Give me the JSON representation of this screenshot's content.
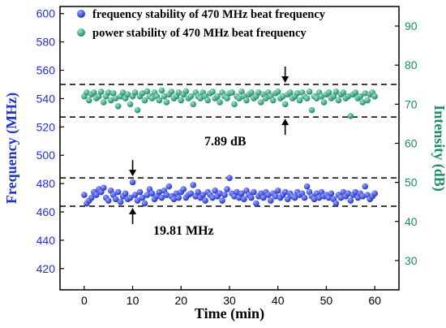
{
  "chart_data": {
    "type": "scatter",
    "xlabel": "Time (min)",
    "ylabel_left": "Frequency (MHz)",
    "ylabel_right": "Intensity (dB)",
    "xlim": [
      -5,
      65
    ],
    "ylim_left": [
      405,
      605
    ],
    "ylim_right": [
      22.5,
      95
    ],
    "x_ticks": [
      0,
      10,
      20,
      30,
      40,
      50,
      60
    ],
    "y_left_ticks": [
      420,
      440,
      460,
      480,
      500,
      520,
      540,
      560,
      580,
      600
    ],
    "y_right_ticks": [
      30,
      40,
      50,
      60,
      70,
      80,
      90
    ],
    "colors": {
      "frequency": "#2233c8",
      "power": "#1e8a6a",
      "left_axis": "#2233c8",
      "right_axis": "#1e8a6a"
    },
    "legend": {
      "placement": "top-left",
      "entries": [
        "frequency stability of 470 MHz beat frequency",
        "power stability of 470 MHz beat frequency"
      ]
    },
    "series": [
      {
        "name": "frequency stability of 470 MHz beat frequency",
        "axis": "left",
        "points": [
          [
            0,
            472
          ],
          [
            0.5,
            466
          ],
          [
            1,
            468
          ],
          [
            1.5,
            470
          ],
          [
            2,
            474
          ],
          [
            2.5,
            472
          ],
          [
            3,
            476
          ],
          [
            3.5,
            474
          ],
          [
            4,
            477
          ],
          [
            4.5,
            470
          ],
          [
            5,
            468
          ],
          [
            5.5,
            475
          ],
          [
            6,
            472
          ],
          [
            6.5,
            469
          ],
          [
            7,
            474
          ],
          [
            7.5,
            467
          ],
          [
            8,
            471
          ],
          [
            8.5,
            473
          ],
          [
            9,
            469
          ],
          [
            9.5,
            470
          ],
          [
            10,
            481
          ],
          [
            10.5,
            472
          ],
          [
            11,
            468
          ],
          [
            11.5,
            474
          ],
          [
            12,
            470
          ],
          [
            12.5,
            466
          ],
          [
            13,
            472
          ],
          [
            13.5,
            476
          ],
          [
            14,
            473
          ],
          [
            14.5,
            469
          ],
          [
            15,
            471
          ],
          [
            15.5,
            474
          ],
          [
            16,
            470
          ],
          [
            16.5,
            475
          ],
          [
            17,
            472
          ],
          [
            17.5,
            478
          ],
          [
            18,
            471
          ],
          [
            18.5,
            469
          ],
          [
            19,
            473
          ],
          [
            19.5,
            470
          ],
          [
            20,
            474
          ],
          [
            20.5,
            476
          ],
          [
            21,
            470
          ],
          [
            21.5,
            472
          ],
          [
            22,
            473
          ],
          [
            22.5,
            479
          ],
          [
            23,
            471
          ],
          [
            23.5,
            474
          ],
          [
            24,
            470
          ],
          [
            24.5,
            472
          ],
          [
            25,
            468
          ],
          [
            25.5,
            474
          ],
          [
            26,
            472
          ],
          [
            26.5,
            470
          ],
          [
            27,
            475
          ],
          [
            27.5,
            471
          ],
          [
            28,
            473
          ],
          [
            28.5,
            468
          ],
          [
            29,
            472
          ],
          [
            29.5,
            476
          ],
          [
            30,
            484
          ],
          [
            30.5,
            473
          ],
          [
            31,
            471
          ],
          [
            31.5,
            474
          ],
          [
            32,
            470
          ],
          [
            32.5,
            473
          ],
          [
            33,
            469
          ],
          [
            33.5,
            475
          ],
          [
            34,
            472
          ],
          [
            34.5,
            470
          ],
          [
            35,
            474
          ],
          [
            35.5,
            466
          ],
          [
            36,
            471
          ],
          [
            36.5,
            473
          ],
          [
            37,
            470
          ],
          [
            37.5,
            474
          ],
          [
            38,
            472
          ],
          [
            38.5,
            468
          ],
          [
            39,
            473
          ],
          [
            39.5,
            471
          ],
          [
            40,
            475
          ],
          [
            40.5,
            470
          ],
          [
            41,
            472
          ],
          [
            41.5,
            474
          ],
          [
            42,
            469
          ],
          [
            42.5,
            473
          ],
          [
            43,
            471
          ],
          [
            43.5,
            470
          ],
          [
            44,
            474
          ],
          [
            44.5,
            472
          ],
          [
            45,
            473
          ],
          [
            45.5,
            470
          ],
          [
            46,
            478
          ],
          [
            46.5,
            474
          ],
          [
            47,
            471
          ],
          [
            47.5,
            469
          ],
          [
            48,
            473
          ],
          [
            48.5,
            470
          ],
          [
            49,
            474
          ],
          [
            49.5,
            471
          ],
          [
            50,
            472
          ],
          [
            50.5,
            470
          ],
          [
            51,
            473
          ],
          [
            51.5,
            469
          ],
          [
            52,
            466
          ],
          [
            52.5,
            472
          ],
          [
            53,
            470
          ],
          [
            53.5,
            474
          ],
          [
            54,
            471
          ],
          [
            54.5,
            473
          ],
          [
            55,
            468
          ],
          [
            55.5,
            472
          ],
          [
            56,
            474
          ],
          [
            56.5,
            470
          ],
          [
            57,
            473
          ],
          [
            57.5,
            471
          ],
          [
            58,
            478
          ],
          [
            58.5,
            472
          ],
          [
            59,
            469
          ],
          [
            59.5,
            471
          ],
          [
            60,
            473
          ]
        ]
      },
      {
        "name": "power stability of 470 MHz beat frequency",
        "axis": "right",
        "points": [
          [
            0,
            72
          ],
          [
            0.5,
            73
          ],
          [
            1,
            71
          ],
          [
            1.5,
            72.5
          ],
          [
            2,
            73
          ],
          [
            2.5,
            71.5
          ],
          [
            3,
            72
          ],
          [
            3.5,
            73.2
          ],
          [
            4,
            70.5
          ],
          [
            4.5,
            72
          ],
          [
            5,
            73
          ],
          [
            5.5,
            71
          ],
          [
            6,
            72.8
          ],
          [
            6.5,
            71.5
          ],
          [
            7,
            69.5
          ],
          [
            7.5,
            72
          ],
          [
            8,
            73
          ],
          [
            8.5,
            71.5
          ],
          [
            9,
            72.5
          ],
          [
            9.5,
            70
          ],
          [
            10,
            72
          ],
          [
            10.5,
            73
          ],
          [
            11,
            68.5
          ],
          [
            11.5,
            72
          ],
          [
            12,
            72.8
          ],
          [
            12.5,
            71
          ],
          [
            13,
            73.3
          ],
          [
            13.5,
            72
          ],
          [
            14,
            71.5
          ],
          [
            14.5,
            73
          ],
          [
            15,
            72
          ],
          [
            15.5,
            71
          ],
          [
            16,
            73.5
          ],
          [
            16.5,
            72
          ],
          [
            17,
            70.5
          ],
          [
            17.5,
            72.5
          ],
          [
            18,
            73.2
          ],
          [
            18.5,
            71.5
          ],
          [
            19,
            72
          ],
          [
            19.5,
            73
          ],
          [
            20,
            71
          ],
          [
            20.5,
            72.5
          ],
          [
            21,
            73.3
          ],
          [
            21.5,
            71.5
          ],
          [
            22,
            72
          ],
          [
            22.5,
            70
          ],
          [
            23,
            73
          ],
          [
            23.5,
            72
          ],
          [
            24,
            71.5
          ],
          [
            24.5,
            73
          ],
          [
            25,
            72
          ],
          [
            25.5,
            71
          ],
          [
            26,
            72.8
          ],
          [
            26.5,
            73.2
          ],
          [
            27,
            71.5
          ],
          [
            27.5,
            72
          ],
          [
            28,
            70.5
          ],
          [
            28.5,
            73
          ],
          [
            29,
            72
          ],
          [
            29.5,
            71.5
          ],
          [
            30,
            72.8
          ],
          [
            30.5,
            73
          ],
          [
            31,
            70
          ],
          [
            31.5,
            72
          ],
          [
            32,
            71.5
          ],
          [
            32.5,
            73.2
          ],
          [
            33,
            72
          ],
          [
            33.5,
            71
          ],
          [
            34,
            72.5
          ],
          [
            34.5,
            73
          ],
          [
            35,
            71.5
          ],
          [
            35.5,
            72
          ],
          [
            36,
            73
          ],
          [
            36.5,
            70.5
          ],
          [
            37,
            72.5
          ],
          [
            37.5,
            71.5
          ],
          [
            38,
            73
          ],
          [
            38.5,
            72
          ],
          [
            39,
            71
          ],
          [
            39.5,
            72.8
          ],
          [
            40,
            73.2
          ],
          [
            40.5,
            71.5
          ],
          [
            41,
            72
          ],
          [
            41.5,
            70
          ],
          [
            42,
            72.5
          ],
          [
            42.5,
            73
          ],
          [
            43,
            71.5
          ],
          [
            43.5,
            72
          ],
          [
            44,
            72.8
          ],
          [
            44.5,
            71
          ],
          [
            45,
            73
          ],
          [
            45.5,
            72
          ],
          [
            46,
            71.5
          ],
          [
            46.5,
            73.2
          ],
          [
            47,
            68.5
          ],
          [
            47.5,
            72
          ],
          [
            48,
            71.5
          ],
          [
            48.5,
            73
          ],
          [
            49,
            72
          ],
          [
            49.5,
            70.5
          ],
          [
            50,
            72.5
          ],
          [
            50.5,
            73
          ],
          [
            51,
            71.5
          ],
          [
            51.5,
            72
          ],
          [
            52,
            73.2
          ],
          [
            52.5,
            71
          ],
          [
            53,
            72.5
          ],
          [
            53.5,
            73
          ],
          [
            54,
            71.5
          ],
          [
            54.5,
            72
          ],
          [
            55,
            67
          ],
          [
            55.5,
            72.5
          ],
          [
            56,
            73
          ],
          [
            56.5,
            71.5
          ],
          [
            57,
            72
          ],
          [
            57.5,
            70.5
          ],
          [
            58,
            72.8
          ],
          [
            58.5,
            71
          ],
          [
            59,
            72.5
          ],
          [
            59.5,
            73
          ],
          [
            60,
            72
          ]
        ]
      }
    ],
    "reference_lines": {
      "frequency_dB_band": [
        464,
        484
      ],
      "power_band_left_scale": [
        527,
        550
      ]
    },
    "annotations": [
      {
        "label": "7.89 dB",
        "arrow_x": 41.5
      },
      {
        "label": "19.81 MHz",
        "arrow_x": 10
      }
    ]
  }
}
